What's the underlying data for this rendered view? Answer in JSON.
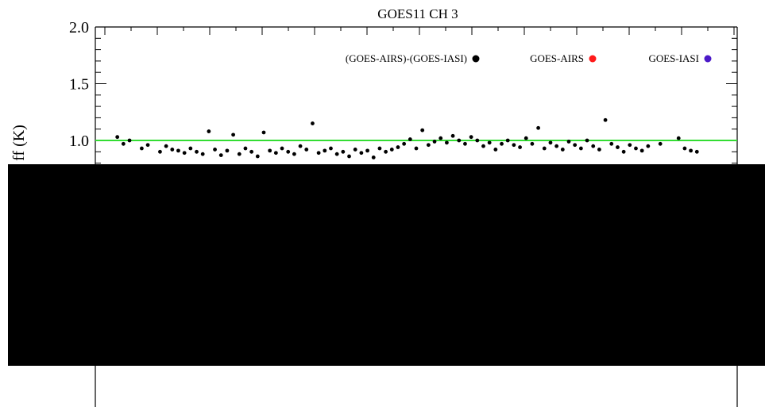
{
  "chart_data": {
    "type": "scatter",
    "title": "GOES11   CH 3",
    "ylabel": "ff (K)",
    "ylim": [
      0.0,
      2.0
    ],
    "yticks": [
      "2.0",
      "1.5",
      "1.0"
    ],
    "reference_line": {
      "y": 1.0,
      "color": "#33dd33"
    },
    "legend_position": "top-right",
    "series": [
      {
        "name": "(GOES-AIRS)-(GOES-IASI)",
        "color": "#000000",
        "points": [
          [
            0.01,
            1.03
          ],
          [
            0.02,
            0.97
          ],
          [
            0.03,
            1.0
          ],
          [
            0.05,
            0.93
          ],
          [
            0.06,
            0.96
          ],
          [
            0.08,
            0.9
          ],
          [
            0.09,
            0.95
          ],
          [
            0.1,
            0.92
          ],
          [
            0.11,
            0.91
          ],
          [
            0.12,
            0.89
          ],
          [
            0.13,
            0.93
          ],
          [
            0.14,
            0.9
          ],
          [
            0.15,
            0.88
          ],
          [
            0.16,
            1.08
          ],
          [
            0.17,
            0.92
          ],
          [
            0.18,
            0.87
          ],
          [
            0.19,
            0.91
          ],
          [
            0.2,
            1.05
          ],
          [
            0.21,
            0.88
          ],
          [
            0.22,
            0.93
          ],
          [
            0.23,
            0.9
          ],
          [
            0.24,
            0.86
          ],
          [
            0.25,
            1.07
          ],
          [
            0.26,
            0.91
          ],
          [
            0.27,
            0.89
          ],
          [
            0.28,
            0.93
          ],
          [
            0.29,
            0.9
          ],
          [
            0.3,
            0.88
          ],
          [
            0.31,
            0.95
          ],
          [
            0.32,
            0.92
          ],
          [
            0.33,
            1.15
          ],
          [
            0.34,
            0.89
          ],
          [
            0.35,
            0.91
          ],
          [
            0.36,
            0.93
          ],
          [
            0.37,
            0.88
          ],
          [
            0.38,
            0.9
          ],
          [
            0.39,
            0.86
          ],
          [
            0.4,
            0.92
          ],
          [
            0.41,
            0.89
          ],
          [
            0.42,
            0.91
          ],
          [
            0.43,
            0.85
          ],
          [
            0.44,
            0.93
          ],
          [
            0.45,
            0.9
          ],
          [
            0.46,
            0.92
          ],
          [
            0.47,
            0.94
          ],
          [
            0.48,
            0.97
          ],
          [
            0.49,
            1.01
          ],
          [
            0.5,
            0.93
          ],
          [
            0.51,
            1.09
          ],
          [
            0.52,
            0.96
          ],
          [
            0.53,
            0.99
          ],
          [
            0.54,
            1.02
          ],
          [
            0.55,
            0.98
          ],
          [
            0.56,
            1.04
          ],
          [
            0.57,
            1.0
          ],
          [
            0.58,
            0.97
          ],
          [
            0.59,
            1.03
          ],
          [
            0.6,
            1.0
          ],
          [
            0.61,
            0.95
          ],
          [
            0.62,
            0.98
          ],
          [
            0.63,
            0.92
          ],
          [
            0.64,
            0.97
          ],
          [
            0.65,
            1.0
          ],
          [
            0.66,
            0.96
          ],
          [
            0.67,
            0.94
          ],
          [
            0.68,
            1.02
          ],
          [
            0.69,
            0.97
          ],
          [
            0.7,
            1.11
          ],
          [
            0.71,
            0.93
          ],
          [
            0.72,
            0.98
          ],
          [
            0.73,
            0.95
          ],
          [
            0.74,
            0.92
          ],
          [
            0.75,
            0.99
          ],
          [
            0.76,
            0.96
          ],
          [
            0.77,
            0.93
          ],
          [
            0.78,
            1.0
          ],
          [
            0.79,
            0.95
          ],
          [
            0.8,
            0.92
          ],
          [
            0.81,
            1.18
          ],
          [
            0.82,
            0.97
          ],
          [
            0.83,
            0.94
          ],
          [
            0.84,
            0.9
          ],
          [
            0.85,
            0.96
          ],
          [
            0.86,
            0.93
          ],
          [
            0.87,
            0.91
          ],
          [
            0.88,
            0.95
          ],
          [
            0.9,
            0.97
          ],
          [
            0.93,
            1.02
          ],
          [
            0.94,
            0.93
          ],
          [
            0.95,
            0.91
          ],
          [
            0.96,
            0.9
          ]
        ]
      },
      {
        "name": "GOES-AIRS",
        "color": "#ff1a1a",
        "points": []
      },
      {
        "name": "GOES-IASI",
        "color": "#4b19c8",
        "points": []
      }
    ]
  }
}
